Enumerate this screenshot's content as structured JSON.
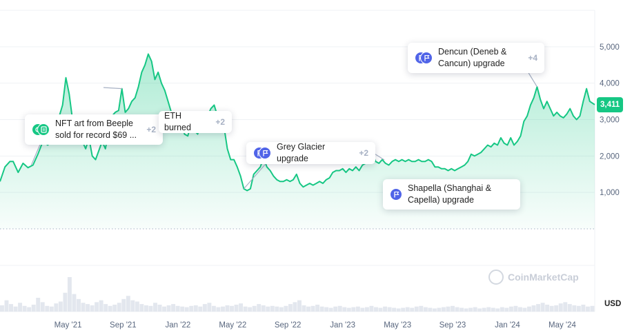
{
  "colors": {
    "line": "#16c784",
    "event_green": "#16c784",
    "event_blue": "#5064e8",
    "grid": "#eff2f5",
    "axis_text": "#58667e"
  },
  "currency_label": "USD",
  "price_tag": "3,411",
  "watermark": "CoinMarketCap",
  "events": [
    {
      "text": "NFT art from Beeple\nsold for record $69 ...",
      "more": "+2",
      "icons": [
        "green-coin-icon",
        "green-document-icon"
      ]
    },
    {
      "text": "ETH burned",
      "more": "+2",
      "icons": []
    },
    {
      "text": "Grey Glacier upgrade",
      "more": "+2",
      "icons": [
        "blue-flag-icon",
        "blue-flag-icon"
      ]
    },
    {
      "text": "Shapella (Shanghai &\nCapella) upgrade",
      "more": "",
      "icons": [
        "blue-flag-icon"
      ]
    },
    {
      "text": "Dencun (Deneb &\nCancun) upgrade",
      "more": "+4",
      "icons": [
        "blue-flag-icon",
        "blue-flag-icon"
      ]
    }
  ],
  "chart_data": {
    "type": "area",
    "title": "",
    "xlabel": "",
    "ylabel": "USD",
    "ylim": [
      0,
      6000
    ],
    "y_ticks": [
      "1,000",
      "2,000",
      "3,000",
      "4,000",
      "5,000"
    ],
    "y_tick_values": [
      1000,
      2000,
      3000,
      4000,
      5000
    ],
    "x_ticks": [
      "May '21",
      "Sep '21",
      "Jan '22",
      "May '22",
      "Sep '22",
      "Jan '23",
      "May '23",
      "Sep '23",
      "Jan '24",
      "May '24"
    ],
    "x_tick_values": [
      2021.333,
      2021.667,
      2022.0,
      2022.333,
      2022.667,
      2023.0,
      2023.333,
      2023.667,
      2024.0,
      2024.333
    ],
    "xlim": [
      2020.92,
      2024.53
    ],
    "grid": true,
    "legend": "none",
    "series": [
      {
        "values": [
          [
            2020.92,
            1300
          ],
          [
            2020.95,
            1700
          ],
          [
            2020.98,
            1850
          ],
          [
            2021.0,
            1850
          ],
          [
            2021.03,
            1550
          ],
          [
            2021.06,
            1800
          ],
          [
            2021.09,
            1680
          ],
          [
            2021.12,
            1750
          ],
          [
            2021.15,
            2050
          ],
          [
            2021.18,
            2400
          ],
          [
            2021.21,
            2300
          ],
          [
            2021.24,
            2450
          ],
          [
            2021.26,
            2800
          ],
          [
            2021.28,
            3100
          ],
          [
            2021.3,
            3400
          ],
          [
            2021.32,
            4150
          ],
          [
            2021.34,
            3700
          ],
          [
            2021.36,
            3000
          ],
          [
            2021.38,
            2700
          ],
          [
            2021.4,
            2600
          ],
          [
            2021.42,
            2400
          ],
          [
            2021.44,
            2200
          ],
          [
            2021.46,
            2500
          ],
          [
            2021.48,
            2000
          ],
          [
            2021.5,
            1900
          ],
          [
            2021.52,
            2150
          ],
          [
            2021.54,
            2400
          ],
          [
            2021.56,
            2200
          ],
          [
            2021.58,
            2700
          ],
          [
            2021.6,
            3100
          ],
          [
            2021.62,
            3200
          ],
          [
            2021.64,
            3250
          ],
          [
            2021.66,
            3850
          ],
          [
            2021.68,
            3200
          ],
          [
            2021.7,
            3300
          ],
          [
            2021.72,
            3500
          ],
          [
            2021.74,
            3600
          ],
          [
            2021.76,
            3900
          ],
          [
            2021.78,
            4300
          ],
          [
            2021.8,
            4500
          ],
          [
            2021.82,
            4800
          ],
          [
            2021.84,
            4600
          ],
          [
            2021.86,
            4100
          ],
          [
            2021.88,
            4300
          ],
          [
            2021.9,
            4000
          ],
          [
            2021.92,
            3800
          ],
          [
            2021.94,
            3500
          ],
          [
            2021.96,
            3200
          ],
          [
            2021.98,
            3100
          ],
          [
            2022.0,
            3200
          ],
          [
            2022.02,
            3000
          ],
          [
            2022.04,
            2600
          ],
          [
            2022.06,
            2550
          ],
          [
            2022.08,
            2900
          ],
          [
            2022.1,
            2700
          ],
          [
            2022.12,
            2600
          ],
          [
            2022.14,
            2900
          ],
          [
            2022.16,
            2750
          ],
          [
            2022.18,
            3100
          ],
          [
            2022.2,
            3300
          ],
          [
            2022.22,
            3400
          ],
          [
            2022.24,
            3100
          ],
          [
            2022.26,
            2950
          ],
          [
            2022.28,
            2800
          ],
          [
            2022.3,
            2200
          ],
          [
            2022.32,
            1900
          ],
          [
            2022.34,
            1900
          ],
          [
            2022.36,
            1700
          ],
          [
            2022.38,
            1450
          ],
          [
            2022.4,
            1100
          ],
          [
            2022.42,
            1050
          ],
          [
            2022.44,
            1100
          ],
          [
            2022.46,
            1500
          ],
          [
            2022.48,
            1600
          ],
          [
            2022.5,
            1700
          ],
          [
            2022.52,
            1950
          ],
          [
            2022.54,
            1700
          ],
          [
            2022.56,
            1600
          ],
          [
            2022.58,
            1450
          ],
          [
            2022.6,
            1350
          ],
          [
            2022.62,
            1300
          ],
          [
            2022.64,
            1300
          ],
          [
            2022.66,
            1350
          ],
          [
            2022.68,
            1300
          ],
          [
            2022.7,
            1350
          ],
          [
            2022.72,
            1500
          ],
          [
            2022.74,
            1250
          ],
          [
            2022.76,
            1150
          ],
          [
            2022.78,
            1200
          ],
          [
            2022.8,
            1250
          ],
          [
            2022.82,
            1200
          ],
          [
            2022.84,
            1250
          ],
          [
            2022.86,
            1300
          ],
          [
            2022.88,
            1250
          ],
          [
            2022.9,
            1350
          ],
          [
            2022.92,
            1400
          ],
          [
            2022.94,
            1550
          ],
          [
            2022.96,
            1600
          ],
          [
            2022.98,
            1600
          ],
          [
            2023.0,
            1650
          ],
          [
            2023.02,
            1550
          ],
          [
            2023.04,
            1650
          ],
          [
            2023.06,
            1600
          ],
          [
            2023.08,
            1700
          ],
          [
            2023.1,
            1600
          ],
          [
            2023.12,
            1750
          ],
          [
            2023.14,
            1800
          ],
          [
            2023.16,
            1900
          ],
          [
            2023.18,
            2100
          ],
          [
            2023.2,
            1850
          ],
          [
            2023.22,
            1800
          ],
          [
            2023.24,
            1900
          ],
          [
            2023.26,
            1800
          ],
          [
            2023.28,
            1750
          ],
          [
            2023.3,
            1850
          ],
          [
            2023.32,
            1900
          ],
          [
            2023.34,
            1850
          ],
          [
            2023.36,
            1900
          ],
          [
            2023.38,
            1850
          ],
          [
            2023.4,
            1900
          ],
          [
            2023.42,
            1850
          ],
          [
            2023.44,
            1850
          ],
          [
            2023.46,
            1900
          ],
          [
            2023.48,
            1850
          ],
          [
            2023.5,
            1850
          ],
          [
            2023.52,
            1900
          ],
          [
            2023.54,
            1850
          ],
          [
            2023.56,
            1700
          ],
          [
            2023.58,
            1700
          ],
          [
            2023.6,
            1650
          ],
          [
            2023.62,
            1650
          ],
          [
            2023.64,
            1600
          ],
          [
            2023.66,
            1650
          ],
          [
            2023.68,
            1600
          ],
          [
            2023.7,
            1650
          ],
          [
            2023.72,
            1700
          ],
          [
            2023.74,
            1750
          ],
          [
            2023.76,
            1850
          ],
          [
            2023.78,
            2050
          ],
          [
            2023.8,
            2000
          ],
          [
            2023.82,
            2050
          ],
          [
            2023.84,
            2100
          ],
          [
            2023.86,
            2200
          ],
          [
            2023.88,
            2300
          ],
          [
            2023.9,
            2250
          ],
          [
            2023.92,
            2350
          ],
          [
            2023.94,
            2300
          ],
          [
            2023.96,
            2500
          ],
          [
            2023.98,
            2350
          ],
          [
            2024.0,
            2300
          ],
          [
            2024.02,
            2500
          ],
          [
            2024.04,
            2300
          ],
          [
            2024.06,
            2400
          ],
          [
            2024.08,
            2550
          ],
          [
            2024.1,
            2950
          ],
          [
            2024.12,
            3100
          ],
          [
            2024.14,
            3400
          ],
          [
            2024.16,
            3600
          ],
          [
            2024.18,
            3900
          ],
          [
            2024.2,
            3550
          ],
          [
            2024.22,
            3300
          ],
          [
            2024.24,
            3500
          ],
          [
            2024.26,
            3300
          ],
          [
            2024.28,
            3100
          ],
          [
            2024.3,
            3200
          ],
          [
            2024.32,
            3100
          ],
          [
            2024.34,
            3050
          ],
          [
            2024.36,
            3150
          ],
          [
            2024.38,
            3300
          ],
          [
            2024.4,
            3100
          ],
          [
            2024.42,
            3000
          ],
          [
            2024.44,
            3100
          ],
          [
            2024.46,
            3500
          ],
          [
            2024.48,
            3850
          ],
          [
            2024.5,
            3500
          ],
          [
            2024.53,
            3411
          ]
        ]
      }
    ],
    "volume": [
      10,
      18,
      12,
      8,
      14,
      9,
      7,
      11,
      22,
      15,
      9,
      8,
      13,
      16,
      30,
      55,
      28,
      20,
      14,
      12,
      10,
      15,
      18,
      12,
      9,
      11,
      14,
      20,
      25,
      18,
      16,
      12,
      10,
      9,
      14,
      11,
      8,
      10,
      12,
      9,
      8,
      7,
      9,
      10,
      8,
      12,
      14,
      9,
      7,
      8,
      10,
      9,
      11,
      13,
      8,
      7,
      9,
      12,
      10,
      8,
      9,
      8,
      7,
      9,
      12,
      15,
      18,
      10,
      8,
      9,
      11,
      8,
      7,
      6,
      8,
      9,
      7,
      6,
      7,
      8,
      6,
      7,
      9,
      7,
      6,
      8,
      7,
      6,
      5,
      6,
      7,
      6,
      8,
      9,
      7,
      6,
      5,
      6,
      7,
      8,
      9,
      7,
      6,
      5,
      6,
      7,
      5,
      6,
      7,
      6,
      5,
      7,
      6,
      8,
      9,
      7,
      6,
      8,
      10,
      12,
      14,
      11,
      9,
      10,
      13,
      15,
      12,
      10,
      9,
      11,
      8,
      9
    ]
  }
}
